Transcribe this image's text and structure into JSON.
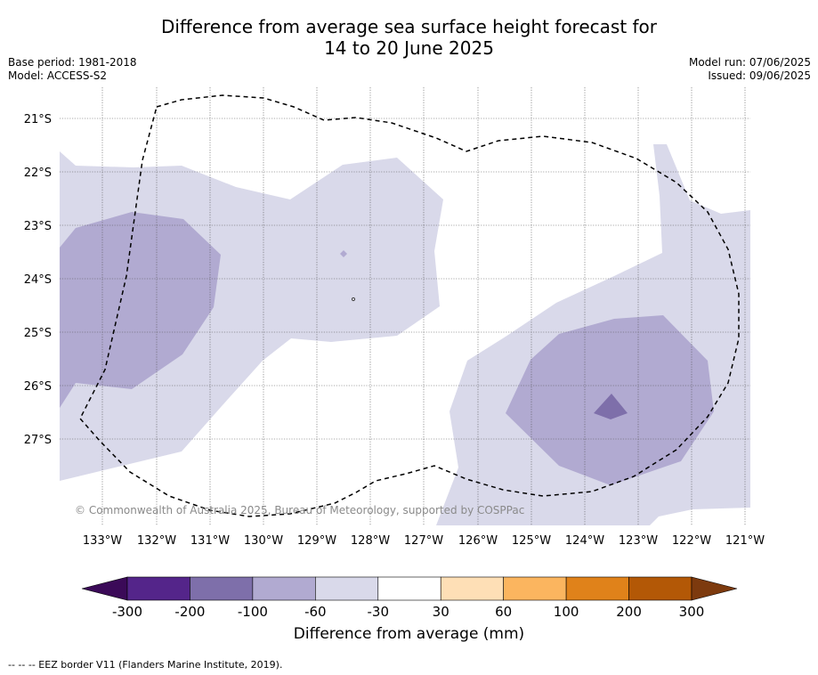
{
  "title_line1": "Difference from average sea surface height forecast for",
  "title_line2": "14 to 20 June 2025",
  "meta_left": [
    "Base period: 1981-2018",
    "Model: ACCESS-S2"
  ],
  "meta_right": [
    "Model run: 07/06/2025",
    "Issued: 09/06/2025"
  ],
  "map": {
    "lat_labels": [
      "21°S",
      "22°S",
      "23°S",
      "24°S",
      "25°S",
      "26°S",
      "27°S"
    ],
    "lon_labels": [
      "133°W",
      "132°W",
      "131°W",
      "130°W",
      "129°W",
      "128°W",
      "127°W",
      "126°W",
      "125°W",
      "124°W",
      "123°W",
      "122°W",
      "121°W"
    ],
    "copyright": "© Commonwealth of Australia 2025, Bureau of Meteorology, supported by COSPPac",
    "gridlines": true,
    "eez_border": "dashed black line"
  },
  "colorbar": {
    "title": "Difference from average (mm)",
    "tick_labels": [
      "-300",
      "-200",
      "-100",
      "-60",
      "-30",
      "30",
      "60",
      "100",
      "200",
      "300"
    ],
    "colors": [
      "#3b0a58",
      "#54258a",
      "#7e6faa",
      "#b1aad1",
      "#d9d9ea",
      "#ffffff",
      "#fedfb6",
      "#fbb55f",
      "#e0821a",
      "#b35806",
      "#7d3a0e"
    ]
  },
  "footer": "--  --  -- EEZ border V11 (Flanders Marine Institute, 2019)."
}
